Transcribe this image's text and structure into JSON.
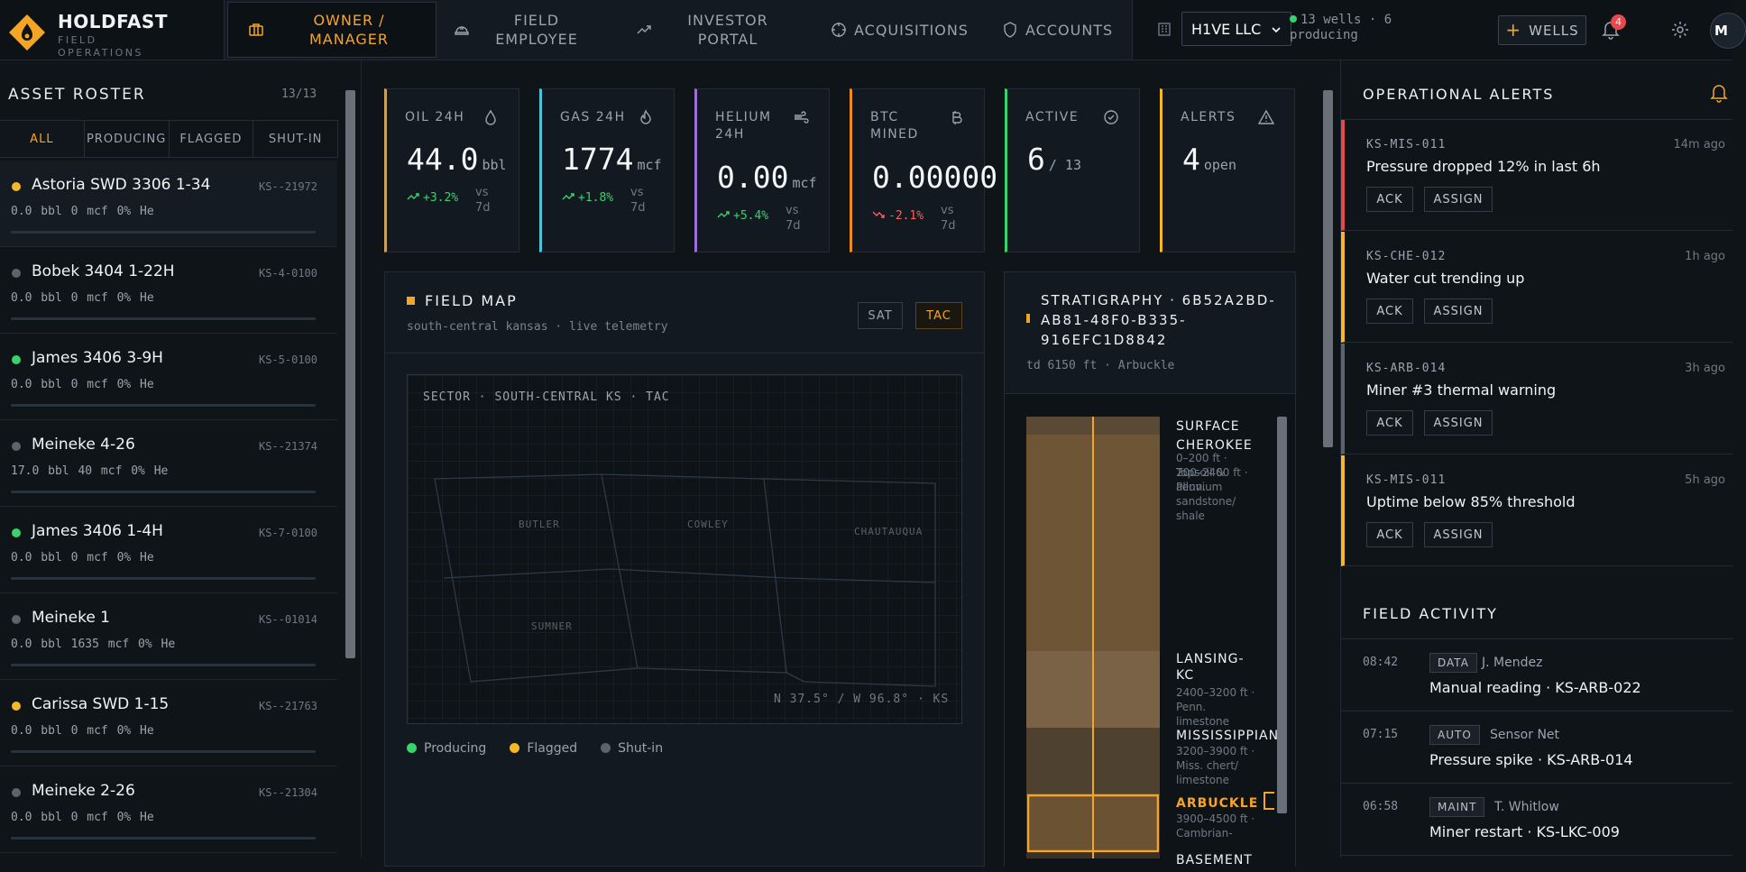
{
  "brand": {
    "name": "HOLDFAST",
    "subtitle": "FIELD OPERATIONS"
  },
  "nav": {
    "tabs": [
      {
        "label": "OWNER / MANAGER",
        "icon": "briefcase-icon",
        "active": true
      },
      {
        "label": "FIELD EMPLOYEE",
        "icon": "hardhat-icon",
        "active": false
      },
      {
        "label": "INVESTOR PORTAL",
        "icon": "trending-up-icon",
        "active": false
      },
      {
        "label": "ACQUISITIONS",
        "icon": "crosshair-icon",
        "active": false
      },
      {
        "label": "ACCOUNTS",
        "icon": "shield-icon",
        "active": false
      }
    ]
  },
  "header": {
    "company": "H1VE LLC",
    "wells_status": "13 wells · 6 producing",
    "add_wells_label": "WELLS",
    "notifications": "4",
    "avatar_initial": "M"
  },
  "roster": {
    "title": "ASSET ROSTER",
    "count": "13/13",
    "filters": [
      "ALL",
      "PRODUCING",
      "FLAGGED",
      "SHUT-IN"
    ],
    "active_filter": "ALL",
    "wells": [
      {
        "name": "Astoria SWD 3306 1-34",
        "id": "KS--21972",
        "meta": "0.0 bbl  0 mcf  0% He",
        "status": "flagged",
        "selected": true
      },
      {
        "name": "Bobek 3404 1-22H",
        "id": "KS-4-0100",
        "meta": "0.0 bbl  0 mcf  0% He",
        "status": "shut-in"
      },
      {
        "name": "James 3406 3-9H",
        "id": "KS-5-0100",
        "meta": "0.0 bbl  0 mcf  0% He",
        "status": "producing"
      },
      {
        "name": "Meineke 4-26",
        "id": "KS--21374",
        "meta": "17.0 bbl  40 mcf  0% He",
        "status": "shut-in"
      },
      {
        "name": "James 3406 1-4H",
        "id": "KS-7-0100",
        "meta": "0.0 bbl  0 mcf  0% He",
        "status": "producing"
      },
      {
        "name": "Meineke 1",
        "id": "KS--01014",
        "meta": "0.0 bbl  1635 mcf  0% He",
        "status": "shut-in"
      },
      {
        "name": "Carissa SWD 1-15",
        "id": "KS--21763",
        "meta": "0.0 bbl  0 mcf  0% He",
        "status": "flagged"
      },
      {
        "name": "Meineke 2-26",
        "id": "KS--21304",
        "meta": "0.0 bbl  0 mcf  0% He",
        "status": "shut-in"
      }
    ]
  },
  "kpis": [
    {
      "label": "OIL 24H",
      "value": "44.0",
      "unit": "bbl",
      "delta": "+3.2%",
      "trend": "up",
      "vs": "vs 7d",
      "color": "#c9a15a",
      "icon": "droplet-icon"
    },
    {
      "label": "GAS 24H",
      "value": "1774",
      "unit": "mcf",
      "delta": "+1.8%",
      "trend": "up",
      "vs": "vs 7d",
      "color": "#4cc3d9",
      "icon": "flame-icon"
    },
    {
      "label": "HELIUM 24H",
      "value": "0.00",
      "unit": "mcf",
      "delta": "+5.4%",
      "trend": "up",
      "vs": "vs 7d",
      "color": "#9b6fd6",
      "icon": "wind-icon"
    },
    {
      "label": "BTC MINED",
      "value": "0.00000",
      "unit": "",
      "delta": "-2.1%",
      "trend": "down",
      "vs": "vs 7d",
      "color": "#f08a24",
      "icon": "bitcoin-icon"
    },
    {
      "label": "ACTIVE",
      "value": "6",
      "unit": "/ 13",
      "delta": "",
      "trend": "",
      "vs": "",
      "color": "#3ad26b",
      "icon": "check-circle-icon"
    },
    {
      "label": "ALERTS",
      "value": "4",
      "unit": "open",
      "delta": "",
      "trend": "",
      "vs": "",
      "color": "#f5b829",
      "icon": "warning-icon"
    }
  ],
  "field_map": {
    "title": "FIELD MAP",
    "subtitle": "south-central kansas · live telemetry",
    "modes": [
      "SAT",
      "TAC"
    ],
    "active_mode": "TAC",
    "sector_label": "SECTOR · SOUTH-CENTRAL KS · TAC",
    "counties": [
      "BUTLER",
      "COWLEY",
      "CHAUTAUQUA",
      "SUMNER"
    ],
    "coords": "N 37.5° / W 96.8° · KS",
    "legend": [
      {
        "label": "Producing",
        "color": "#3ad26b"
      },
      {
        "label": "Flagged",
        "color": "#f5b829"
      },
      {
        "label": "Shut-in",
        "color": "#5c636b"
      }
    ]
  },
  "stratigraphy": {
    "title": "STRATIGRAPHY · 6B52A2BD-AB81-48F0-B335-916EFC1D8842",
    "subtitle": "td 6150 ft · Arbuckle",
    "layers": [
      {
        "name": "SURFACE",
        "desc": "0–200 ft · Topsoil & alluvium"
      },
      {
        "name": "CHEROKEE",
        "desc": "200–2400 ft · Penn. sandstone/ shale"
      },
      {
        "name": "LANSING-KC",
        "desc": "2400–3200 ft · Penn. limestone"
      },
      {
        "name": "MISSISSIPPIAN",
        "desc": "3200–3900 ft · Miss. chert/ limestone"
      },
      {
        "name": "ARBUCKLE",
        "desc": "3900–4500 ft · Cambrian-"
      },
      {
        "name": "BASEMENT",
        "desc": ""
      }
    ]
  },
  "alerts": {
    "title": "OPERATIONAL ALERTS",
    "items": [
      {
        "code": "KS-MIS-011",
        "time": "14m ago",
        "message": "Pressure dropped 12% in last 6h",
        "severity_color": "#e5484d",
        "ack": "ACK",
        "assign": "ASSIGN"
      },
      {
        "code": "KS-CHE-012",
        "time": "1h ago",
        "message": "Water cut trending up",
        "severity_color": "#f5b829",
        "ack": "ACK",
        "assign": "ASSIGN"
      },
      {
        "code": "KS-ARB-014",
        "time": "3h ago",
        "message": "Miner #3 thermal warning",
        "severity_color": "#5c636b",
        "ack": "ACK",
        "assign": "ASSIGN"
      },
      {
        "code": "KS-MIS-011",
        "time": "5h ago",
        "message": "Uptime below 85% threshold",
        "severity_color": "#f5b829",
        "ack": "ACK",
        "assign": "ASSIGN"
      }
    ]
  },
  "activity": {
    "title": "FIELD ACTIVITY",
    "items": [
      {
        "time": "08:42",
        "tag": "DATA",
        "who": "J. Mendez",
        "message": "Manual reading · KS-ARB-022"
      },
      {
        "time": "07:15",
        "tag": "AUTO",
        "who": "Sensor Net",
        "message": "Pressure spike · KS-ARB-014"
      },
      {
        "time": "06:58",
        "tag": "MAINT",
        "who": "T. Whitlow",
        "message": "Miner restart · KS-LKC-009"
      }
    ]
  }
}
